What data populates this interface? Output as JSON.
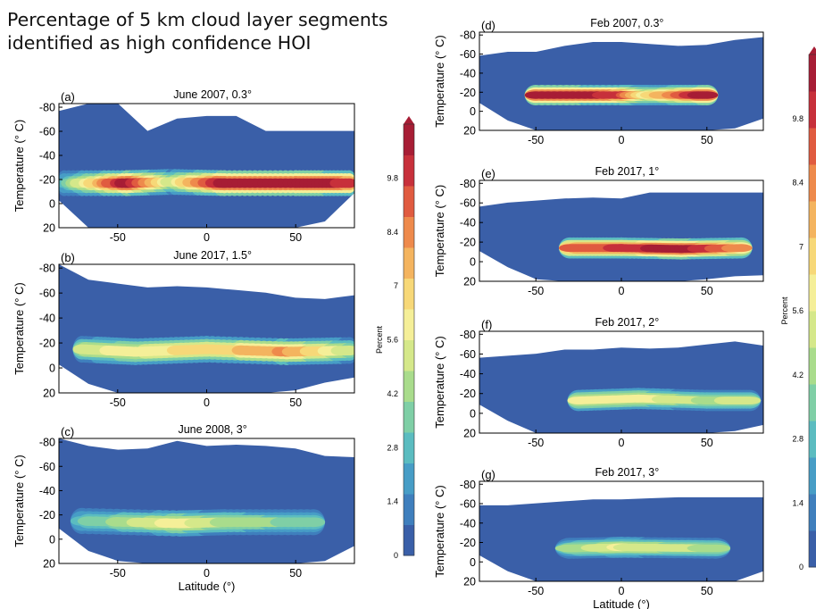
{
  "headline": {
    "line1": "Percentage of 5 km cloud layer segments",
    "line2": "identified as high confidence HOI"
  },
  "colorbar": {
    "label": "Percent",
    "ticks": [
      "0",
      "1.4",
      "2.8",
      "4.2",
      "5.6",
      "7",
      "8.4",
      "9.8"
    ],
    "colors": [
      "#3a5fa8",
      "#3f7fbd",
      "#479dc6",
      "#5bbcc0",
      "#7fcfa6",
      "#a9dc8c",
      "#d5e88a",
      "#f5ef98",
      "#f7d878",
      "#f4b45f",
      "#ee8a4c",
      "#e05b40",
      "#c7303b",
      "#a71d35"
    ]
  },
  "chart_data": [
    {
      "type": "heatmap",
      "panel": "(a)",
      "title": "June 2007, 0.3°",
      "ylabel": "Temperature (° C)",
      "xlabel": "",
      "xticks": [
        "-50",
        "0",
        "50"
      ],
      "yticks": [
        "-80",
        "-60",
        "-40",
        "-20",
        "0",
        "20"
      ],
      "xlim": [
        -83,
        83
      ],
      "ylim": [
        20,
        -83
      ],
      "band": [
        {
          "lat": -80,
          "temp": -17,
          "percent": 3
        },
        {
          "lat": -45,
          "temp": -17,
          "percent": 11
        },
        {
          "lat": -20,
          "temp": -18,
          "percent": 5
        },
        {
          "lat": 10,
          "temp": -17,
          "percent": 11
        },
        {
          "lat": 50,
          "temp": -17,
          "percent": 11
        },
        {
          "lat": 80,
          "temp": -17,
          "percent": 10
        }
      ]
    },
    {
      "type": "heatmap",
      "panel": "(b)",
      "title": "June 2017, 1.5°",
      "ylabel": "Temperature (° C)",
      "xlabel": "",
      "xticks": [
        "-50",
        "0",
        "50"
      ],
      "yticks": [
        "-80",
        "-60",
        "-40",
        "-20",
        "0",
        "20"
      ],
      "xlim": [
        -83,
        83
      ],
      "ylim": [
        20,
        -83
      ],
      "band": [
        {
          "lat": -70,
          "temp": -15,
          "percent": 5
        },
        {
          "lat": -40,
          "temp": -13,
          "percent": 6
        },
        {
          "lat": 0,
          "temp": -15,
          "percent": 6.5
        },
        {
          "lat": 45,
          "temp": -13,
          "percent": 8
        },
        {
          "lat": 80,
          "temp": -14,
          "percent": 5
        }
      ]
    },
    {
      "type": "heatmap",
      "panel": "(c)",
      "title": "June 2008, 3°",
      "ylabel": "Temperature (° C)",
      "xlabel": "Latitude (°)",
      "xticks": [
        "-50",
        "0",
        "50"
      ],
      "yticks": [
        "-80",
        "-60",
        "-40",
        "-20",
        "0",
        "20"
      ],
      "xlim": [
        -83,
        83
      ],
      "ylim": [
        20,
        -83
      ],
      "band": [
        {
          "lat": -70,
          "temp": -15,
          "percent": 3
        },
        {
          "lat": -15,
          "temp": -13,
          "percent": 6
        },
        {
          "lat": 10,
          "temp": -14,
          "percent": 4.5
        },
        {
          "lat": 60,
          "temp": -14,
          "percent": 3.5
        }
      ]
    },
    {
      "type": "heatmap",
      "panel": "(d)",
      "title": "Feb 2007, 0.3°",
      "ylabel": "Temperature (° C)",
      "xlabel": "",
      "xticks": [
        "-50",
        "0",
        "50"
      ],
      "yticks": [
        "-80",
        "-60",
        "-40",
        "-20",
        "0",
        "20"
      ],
      "xlim": [
        -83,
        83
      ],
      "ylim": [
        20,
        -83
      ],
      "band": [
        {
          "lat": -50,
          "temp": -17,
          "percent": 11
        },
        {
          "lat": 0,
          "temp": -17,
          "percent": 10
        },
        {
          "lat": 15,
          "temp": -17,
          "percent": 6
        },
        {
          "lat": 50,
          "temp": -17,
          "percent": 11
        }
      ]
    },
    {
      "type": "heatmap",
      "panel": "(e)",
      "title": "Feb 2017, 1°",
      "ylabel": "Temperature (° C)",
      "xlabel": "",
      "xticks": [
        "-50",
        "0",
        "50"
      ],
      "yticks": [
        "-80",
        "-60",
        "-40",
        "-20",
        "0",
        "20"
      ],
      "xlim": [
        -83,
        83
      ],
      "ylim": [
        20,
        -83
      ],
      "band": [
        {
          "lat": -30,
          "temp": -14,
          "percent": 9
        },
        {
          "lat": 0,
          "temp": -14,
          "percent": 9.5
        },
        {
          "lat": 35,
          "temp": -13,
          "percent": 11
        },
        {
          "lat": 70,
          "temp": -14,
          "percent": 8
        }
      ]
    },
    {
      "type": "heatmap",
      "panel": "(f)",
      "title": "Feb 2017, 2°",
      "ylabel": "Temperature (° C)",
      "xlabel": "",
      "xticks": [
        "-50",
        "0",
        "50"
      ],
      "yticks": [
        "-80",
        "-60",
        "-40",
        "-20",
        "0",
        "20"
      ],
      "xlim": [
        -83,
        83
      ],
      "ylim": [
        20,
        -83
      ],
      "band": [
        {
          "lat": -25,
          "temp": -13,
          "percent": 6
        },
        {
          "lat": 10,
          "temp": -15,
          "percent": 6
        },
        {
          "lat": 50,
          "temp": -13,
          "percent": 4.5
        },
        {
          "lat": 75,
          "temp": -13,
          "percent": 5
        }
      ]
    },
    {
      "type": "heatmap",
      "panel": "(g)",
      "title": "Feb 2017, 3°",
      "ylabel": "Temperature (° C)",
      "xlabel": "Latitude (°)",
      "xticks": [
        "-50",
        "0",
        "50"
      ],
      "yticks": [
        "-80",
        "-60",
        "-40",
        "-20",
        "0",
        "20"
      ],
      "xlim": [
        -83,
        83
      ],
      "ylim": [
        20,
        -83
      ],
      "band": [
        {
          "lat": -30,
          "temp": -14,
          "percent": 4
        },
        {
          "lat": 0,
          "temp": -15,
          "percent": 5.5
        },
        {
          "lat": 55,
          "temp": -14,
          "percent": 4.5
        }
      ]
    }
  ]
}
